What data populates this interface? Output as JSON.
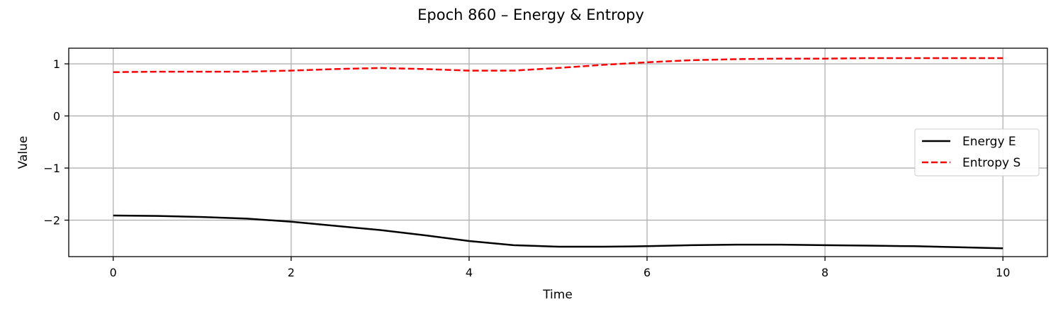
{
  "chart_data": {
    "type": "line",
    "title": "Epoch 860 – Energy & Entropy",
    "xlabel": "Time",
    "ylabel": "Value",
    "xlim": [
      -0.5,
      10.5
    ],
    "ylim": [
      -2.7,
      1.3
    ],
    "x_ticks": [
      0,
      2,
      4,
      6,
      8,
      10
    ],
    "y_ticks": [
      -2,
      -1,
      0,
      1
    ],
    "y_tick_labels": [
      "−2",
      "−1",
      "0",
      "1"
    ],
    "grid": true,
    "legend_position": "center-right",
    "series": [
      {
        "name": "Energy E",
        "color": "#000000",
        "style": "solid",
        "x": [
          0,
          0.5,
          1,
          1.5,
          2,
          2.5,
          3,
          3.5,
          4,
          4.5,
          5,
          5.5,
          6,
          6.5,
          7,
          7.5,
          8,
          8.5,
          9,
          9.5,
          10
        ],
        "y": [
          -1.91,
          -1.92,
          -1.94,
          -1.97,
          -2.03,
          -2.11,
          -2.19,
          -2.29,
          -2.4,
          -2.48,
          -2.51,
          -2.51,
          -2.5,
          -2.48,
          -2.47,
          -2.47,
          -2.48,
          -2.49,
          -2.5,
          -2.52,
          -2.54
        ]
      },
      {
        "name": "Entropy S",
        "color": "#ff0000",
        "style": "dashed",
        "x": [
          0,
          0.5,
          1,
          1.5,
          2,
          2.5,
          3,
          3.5,
          4,
          4.5,
          5,
          5.5,
          6,
          6.5,
          7,
          7.5,
          8,
          8.5,
          9,
          9.5,
          10
        ],
        "y": [
          0.84,
          0.85,
          0.85,
          0.85,
          0.87,
          0.9,
          0.92,
          0.9,
          0.87,
          0.87,
          0.92,
          0.98,
          1.03,
          1.07,
          1.09,
          1.1,
          1.1,
          1.11,
          1.11,
          1.11,
          1.11
        ]
      }
    ]
  }
}
